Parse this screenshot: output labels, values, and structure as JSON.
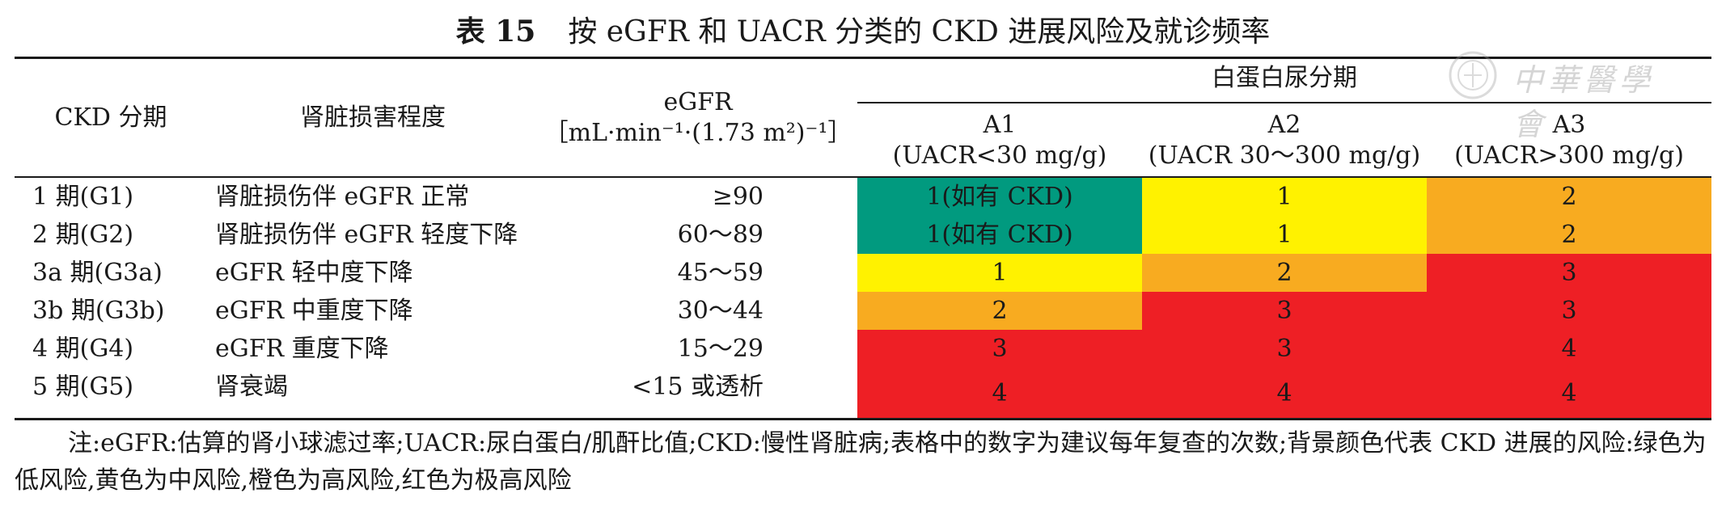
{
  "title": {
    "number": "表 15",
    "text": "按 eGFR 和 UACR 分类的 CKD 进展风险及就诊频率"
  },
  "header": {
    "stage_col": "CKD 分期",
    "damage_col": "肾脏损害程度",
    "egfr_col_line1": "eGFR",
    "egfr_col_line2": "［mL·min⁻¹·(1.73 m²)⁻¹］",
    "albuminuria_group": "白蛋白尿分期",
    "a1_name": "A1",
    "a1_range": "(UACR<30 mg/g)",
    "a2_name": "A2",
    "a2_range": "(UACR 30～300 mg/g)",
    "a3_name": "A3",
    "a3_range": "(UACR>300 mg/g)"
  },
  "colors": {
    "green": "#019a7f",
    "yellow": "#fff200",
    "orange": "#f8ab20",
    "red": "#ee1f25"
  },
  "rows": [
    {
      "stage": "1 期(G1)",
      "damage": "肾脏损伤伴 eGFR 正常",
      "egfr": "≥90",
      "a1": "1(如有 CKD)",
      "a2": "1",
      "a3": "2",
      "c1": "#019a7f",
      "c2": "#fff200",
      "c3": "#f8ab20"
    },
    {
      "stage": "2 期(G2)",
      "damage": "肾脏损伤伴 eGFR 轻度下降",
      "egfr": "60～89",
      "a1": "1(如有 CKD)",
      "a2": "1",
      "a3": "2",
      "c1": "#019a7f",
      "c2": "#fff200",
      "c3": "#f8ab20"
    },
    {
      "stage": "3a 期(G3a)",
      "damage": "eGFR 轻中度下降",
      "egfr": "45～59",
      "a1": "1",
      "a2": "2",
      "a3": "3",
      "c1": "#fff200",
      "c2": "#f8ab20",
      "c3": "#ee1f25"
    },
    {
      "stage": "3b 期(G3b)",
      "damage": "eGFR 中重度下降",
      "egfr": "30～44",
      "a1": "2",
      "a2": "3",
      "a3": "3",
      "c1": "#f8ab20",
      "c2": "#ee1f25",
      "c3": "#ee1f25"
    },
    {
      "stage": "4 期(G4)",
      "damage": "eGFR 重度下降",
      "egfr": "15～29",
      "a1": "3",
      "a2": "3",
      "a3": "4",
      "c1": "#ee1f25",
      "c2": "#ee1f25",
      "c3": "#ee1f25"
    },
    {
      "stage": "5 期(G5)",
      "damage": "肾衰竭",
      "egfr": "<15 或透析",
      "a1": "4",
      "a2": "4",
      "a3": "4",
      "c1": "#ee1f25",
      "c2": "#ee1f25",
      "c3": "#ee1f25"
    }
  ],
  "note": "注:eGFR:估算的肾小球滤过率;UACR:尿白蛋白/肌酐比值;CKD:慢性肾脏病;表格中的数字为建议每年复查的次数;背景颜色代表 CKD 进展的风险:绿色为低风险,黄色为中风险,橙色为高风险,红色为极高风险",
  "watermark": {
    "text": "中華醫學會",
    "icon": "society-seal-icon"
  }
}
